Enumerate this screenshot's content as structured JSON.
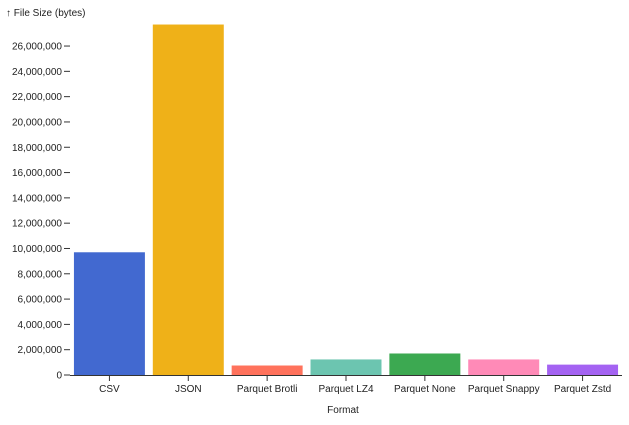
{
  "chart_data": {
    "type": "bar",
    "title": "",
    "ylabel": "↑ File Size (bytes)",
    "xlabel": "Format",
    "categories": [
      "CSV",
      "JSON",
      "Parquet Brotli",
      "Parquet LZ4",
      "Parquet None",
      "Parquet Snappy",
      "Parquet Zstd"
    ],
    "values": [
      9700000,
      27700000,
      750000,
      1230000,
      1700000,
      1230000,
      820000
    ],
    "colors": [
      "#4269d0",
      "#efb118",
      "#ff725c",
      "#6cc5b0",
      "#3ca951",
      "#ff8ab7",
      "#a463f2"
    ],
    "ylim": [
      0,
      27900000
    ],
    "yticks": [
      0,
      2000000,
      4000000,
      6000000,
      8000000,
      10000000,
      12000000,
      14000000,
      16000000,
      18000000,
      20000000,
      22000000,
      24000000,
      26000000
    ],
    "ytick_labels": [
      "0",
      "2,000,000",
      "4,000,000",
      "6,000,000",
      "8,000,000",
      "10,000,000",
      "12,000,000",
      "14,000,000",
      "16,000,000",
      "18,000,000",
      "20,000,000",
      "22,000,000",
      "24,000,000",
      "26,000,000"
    ],
    "grid": false,
    "legend": "none"
  }
}
